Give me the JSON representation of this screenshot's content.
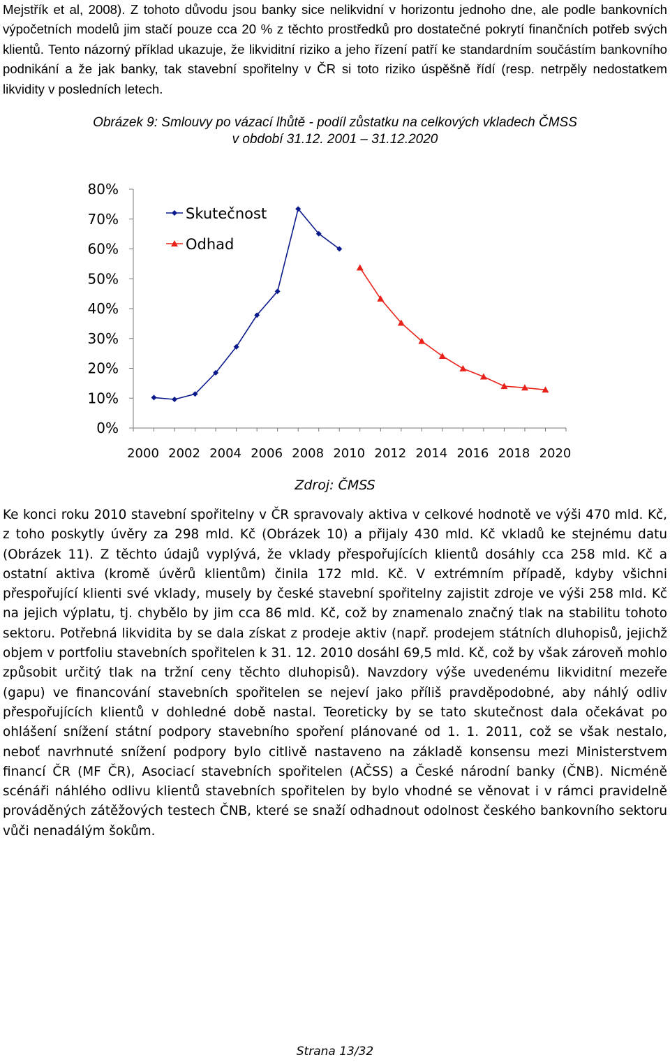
{
  "paragraph_top": "Mejstřík et al, 2008). Z tohoto důvodu jsou banky sice nelikvidní v horizontu jednoho dne, ale podle bankovních výpočetních modelů jim stačí pouze cca 20 % z těchto prostředků pro dostatečné pokrytí finančních potřeb svých klientů. Tento názorný příklad ukazuje, že likviditní riziko a jeho řízení patří ke standardním součástím bankovního podnikání a že jak banky, tak stavební spořitelny v ČR si toto riziko úspěšně řídí (resp. netrpěly nedostatkem likvidity v posledních letech.",
  "figure": {
    "caption_line1": "Obrázek 9: Smlouvy po vázací lhůtě - podíl zůstatku na celkových vkladech ČMSS",
    "caption_line2": "v období 31.12. 2001 – 31.12.2020",
    "source": "Zdroj: ČMSS"
  },
  "chart_data": {
    "type": "line",
    "title": "",
    "xlabel": "",
    "ylabel": "",
    "xlim": [
      2000,
      2021
    ],
    "ylim": [
      0,
      80
    ],
    "x_ticks": [
      "2000",
      "2002",
      "2004",
      "2006",
      "2008",
      "2010",
      "2012",
      "2014",
      "2016",
      "2018",
      "2020"
    ],
    "y_ticks": [
      "0%",
      "10%",
      "20%",
      "30%",
      "40%",
      "50%",
      "60%",
      "70%",
      "80%"
    ],
    "grid": false,
    "legend_position": "top-left",
    "series": [
      {
        "name": "Skutečnost",
        "color": "#0a1a8c",
        "marker": "diamond",
        "x": [
          2001,
          2002,
          2003,
          2004,
          2005,
          2006,
          2007,
          2008,
          2009,
          2010
        ],
        "y": [
          10.2,
          9.6,
          11.4,
          18.5,
          27.2,
          37.8,
          45.8,
          73.4,
          65.1,
          60.0
        ]
      },
      {
        "name": "Odhad",
        "color": "#e8221a",
        "marker": "triangle",
        "x": [
          2011,
          2012,
          2013,
          2014,
          2015,
          2016,
          2017,
          2018,
          2019,
          2020
        ],
        "y": [
          53.7,
          43.3,
          35.2,
          29.1,
          24.1,
          19.9,
          17.2,
          14.0,
          13.5,
          12.8
        ]
      }
    ]
  },
  "paragraph_body": "Ke konci roku 2010 stavební spořitelny v ČR spravovaly aktiva v celkové hodnotě ve výši 470 mld. Kč, z toho poskytly úvěry za 298 mld. Kč (Obrázek 10) a přijaly 430 mld. Kč vkladů ke stejnému datu (Obrázek 11). Z těchto údajů vyplývá, že vklady přespořujících klientů dosáhly cca 258 mld. Kč a ostatní aktiva (kromě úvěrů klientům) činila 172 mld. Kč. V extrémním případě, kdyby všichni přespořující klienti své vklady, musely by české stavební spořitelny zajistit zdroje ve výši 258 mld. Kč na jejich výplatu, tj. chybělo by jim cca 86 mld. Kč, což by znamenalo značný tlak na stabilitu tohoto sektoru. Potřebná likvidita by se dala získat z prodeje aktiv (např. prodejem státních dluhopisů, jejichž objem v portfoliu stavebních spořitelen k 31. 12. 2010 dosáhl 69,5 mld. Kč, což by však zároveň mohlo způsobit určitý tlak na tržní ceny těchto dluhopisů). Navzdory výše uvedenému likviditní mezeře (gapu) ve financování stavebních spořitelen se nejeví jako příliš pravděpodobné, aby náhlý odliv přespořujících klientů v dohledné době nastal. Teoreticky by se tato skutečnost dala očekávat po ohlášení snížení státní podpory stavebního spoření plánované od 1. 1. 2011, což se však nestalo, neboť navrhnuté snížení podpory bylo citlivě nastaveno na základě konsensu mezi Ministerstvem financí ČR (MF ČR), Asociací stavebních spořitelen (AČSS) a České národní banky (ČNB). Nicméně scénáři náhlého odlivu klientů stavebních spořitelen by bylo vhodné se věnovat i v rámci pravidelně prováděných zátěžových testech ČNB, které se snaží odhadnout odolnost českého bankovního sektoru vůči nenadálým šokům.",
  "page_number": "Strana 13/32"
}
